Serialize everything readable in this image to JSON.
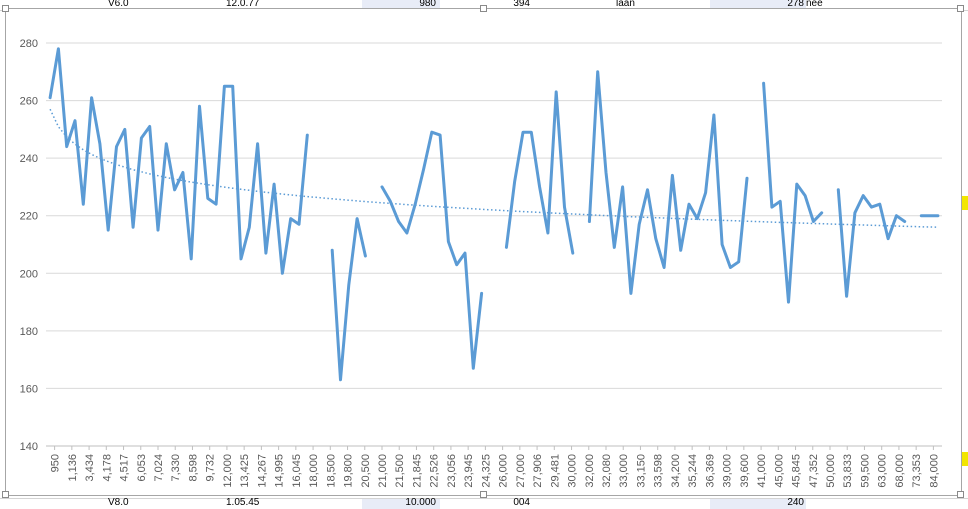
{
  "sheet": {
    "top_row": [
      "V6.0",
      "12.0.77",
      "980",
      "394",
      "laan",
      "278",
      "nee"
    ],
    "bottom_row": [
      "V8.0",
      "1.05.45",
      "10.000",
      "004",
      "",
      "240",
      ""
    ]
  },
  "chart_data": {
    "type": "line",
    "title": "",
    "xlabel": "",
    "ylabel": "",
    "ylim": [
      140,
      280
    ],
    "yticks": [
      140,
      160,
      180,
      200,
      220,
      240,
      260,
      280
    ],
    "grid": true,
    "legend": "none",
    "trendline": {
      "type": "logarithmic",
      "style": "dotted",
      "start": 257,
      "end": 216
    },
    "x_tick_labels": [
      "950",
      "1,136",
      "3,434",
      "4,178",
      "4,517",
      "6,053",
      "7,024",
      "7,330",
      "8,598",
      "9,732",
      "12,000",
      "13,425",
      "14,267",
      "14,995",
      "16,045",
      "18,000",
      "18,500",
      "19,800",
      "20,500",
      "21,000",
      "21,500",
      "21,845",
      "22,526",
      "23,056",
      "23,945",
      "24,325",
      "26,000",
      "27,000",
      "27,906",
      "29,481",
      "30,000",
      "32,000",
      "32,080",
      "33,000",
      "33,150",
      "33,598",
      "34,200",
      "35,244",
      "36,369",
      "39,000",
      "39,600",
      "41,000",
      "45,000",
      "45,845",
      "47,352",
      "50,000",
      "53,833",
      "59,500",
      "63,000",
      "68,000",
      "73,353",
      "84,000"
    ],
    "series": [
      {
        "color": "#5b9bd5",
        "values": [
          261,
          278,
          244,
          253,
          224,
          261,
          245,
          215,
          244,
          250,
          216,
          247,
          251,
          215,
          245,
          229,
          235,
          205,
          258,
          226,
          224,
          265,
          265,
          205,
          216,
          245,
          207,
          231,
          200,
          219,
          217,
          248,
          null,
          null,
          208,
          163,
          196,
          219,
          206,
          null,
          230,
          225,
          218,
          214,
          224,
          236,
          249,
          248,
          211,
          203,
          207,
          167,
          193,
          null,
          null,
          209,
          232,
          249,
          249,
          230,
          214,
          263,
          223,
          207,
          null,
          218,
          270,
          235,
          209,
          230,
          193,
          217,
          229,
          212,
          202,
          234,
          208,
          224,
          219,
          228,
          255,
          210,
          202,
          204,
          233,
          null,
          266,
          223,
          225,
          190,
          231,
          227,
          218,
          221,
          null,
          229,
          192,
          221,
          227,
          223,
          224,
          212,
          220,
          218,
          null,
          220,
          220,
          220
        ]
      }
    ]
  }
}
